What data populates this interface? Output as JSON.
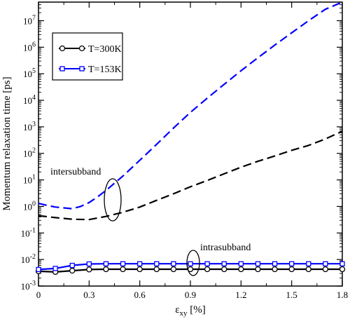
{
  "chart_data": {
    "type": "line",
    "title": "",
    "xlabel": "ε",
    "xlabel_sub": "xy",
    "xlabel_unit": " [%]",
    "ylabel": "Momentum relaxation time [ps]",
    "xlim": [
      0,
      1.8
    ],
    "ylim_log10": [
      -3,
      7.7
    ],
    "y_scale": "log",
    "grid": false,
    "legend_position": "top-left",
    "x_ticks": [
      0,
      0.3,
      0.6,
      0.9,
      1.2,
      1.5,
      1.8
    ],
    "x_tick_labels": [
      "0",
      "0.3",
      "0.6",
      "0.9",
      "1.2",
      "1.5",
      "1.8"
    ],
    "y_tick_exponents": [
      -3,
      -2,
      -1,
      0,
      1,
      2,
      3,
      4,
      5,
      6,
      7
    ],
    "y_tick_base": "10",
    "series": [
      {
        "name": "T=300K",
        "color": "#000000",
        "marker": "circle",
        "kind": "intrasubband",
        "style": "solid",
        "x": [
          0,
          0.1,
          0.2,
          0.3,
          0.4,
          0.5,
          0.6,
          0.7,
          0.8,
          0.9,
          1.0,
          1.1,
          1.2,
          1.3,
          1.4,
          1.5,
          1.6,
          1.7,
          1.8
        ],
        "y": [
          0.0036,
          0.0034,
          0.0038,
          0.0042,
          0.0043,
          0.0043,
          0.0043,
          0.0043,
          0.0043,
          0.0043,
          0.0043,
          0.0043,
          0.0043,
          0.0043,
          0.0043,
          0.0043,
          0.0043,
          0.0043,
          0.0043
        ]
      },
      {
        "name": "T=153K",
        "color": "#0000ff",
        "marker": "square",
        "kind": "intrasubband",
        "style": "solid",
        "x": [
          0,
          0.1,
          0.2,
          0.3,
          0.4,
          0.5,
          0.6,
          0.7,
          0.8,
          0.9,
          1.0,
          1.1,
          1.2,
          1.3,
          1.4,
          1.5,
          1.6,
          1.7,
          1.8
        ],
        "y": [
          0.0042,
          0.0046,
          0.006,
          0.0068,
          0.0069,
          0.0069,
          0.0069,
          0.0069,
          0.0069,
          0.0069,
          0.0069,
          0.0069,
          0.0069,
          0.0069,
          0.0069,
          0.0069,
          0.0069,
          0.0069,
          0.0069
        ]
      },
      {
        "color": "#000000",
        "kind": "intersubband",
        "style": "dashed",
        "x": [
          0,
          0.1,
          0.2,
          0.3,
          0.4,
          0.5,
          0.6,
          0.7,
          0.8,
          0.9,
          1.0,
          1.1,
          1.2,
          1.3,
          1.4,
          1.5,
          1.6,
          1.7,
          1.8
        ],
        "y": [
          0.45,
          0.38,
          0.33,
          0.32,
          0.42,
          0.6,
          0.95,
          1.7,
          3.0,
          5.5,
          9.5,
          17,
          30,
          50,
          80,
          130,
          200,
          350,
          680
        ]
      },
      {
        "color": "#0000ff",
        "kind": "intersubband",
        "style": "dashed",
        "x": [
          0,
          0.05,
          0.1,
          0.15,
          0.2,
          0.25,
          0.3,
          0.35,
          0.4,
          0.45,
          0.5,
          0.6,
          0.7,
          0.8,
          0.9,
          1.0,
          1.1,
          1.2,
          1.3,
          1.4,
          1.5,
          1.6,
          1.7,
          1.8
        ],
        "y": [
          1.3,
          1.1,
          0.95,
          0.88,
          0.82,
          1.0,
          1.4,
          2.3,
          4.0,
          7.5,
          14,
          55,
          220,
          900,
          3500,
          12000,
          40000,
          130000,
          400000,
          1200000,
          3500000,
          10000000,
          27000000,
          60000000
        ]
      }
    ],
    "annotations": [
      {
        "text": "intersubband",
        "x": 0.44,
        "y": 2.0
      },
      {
        "text": "intrasubband",
        "x": 0.9,
        "y": 0.0056
      }
    ]
  }
}
